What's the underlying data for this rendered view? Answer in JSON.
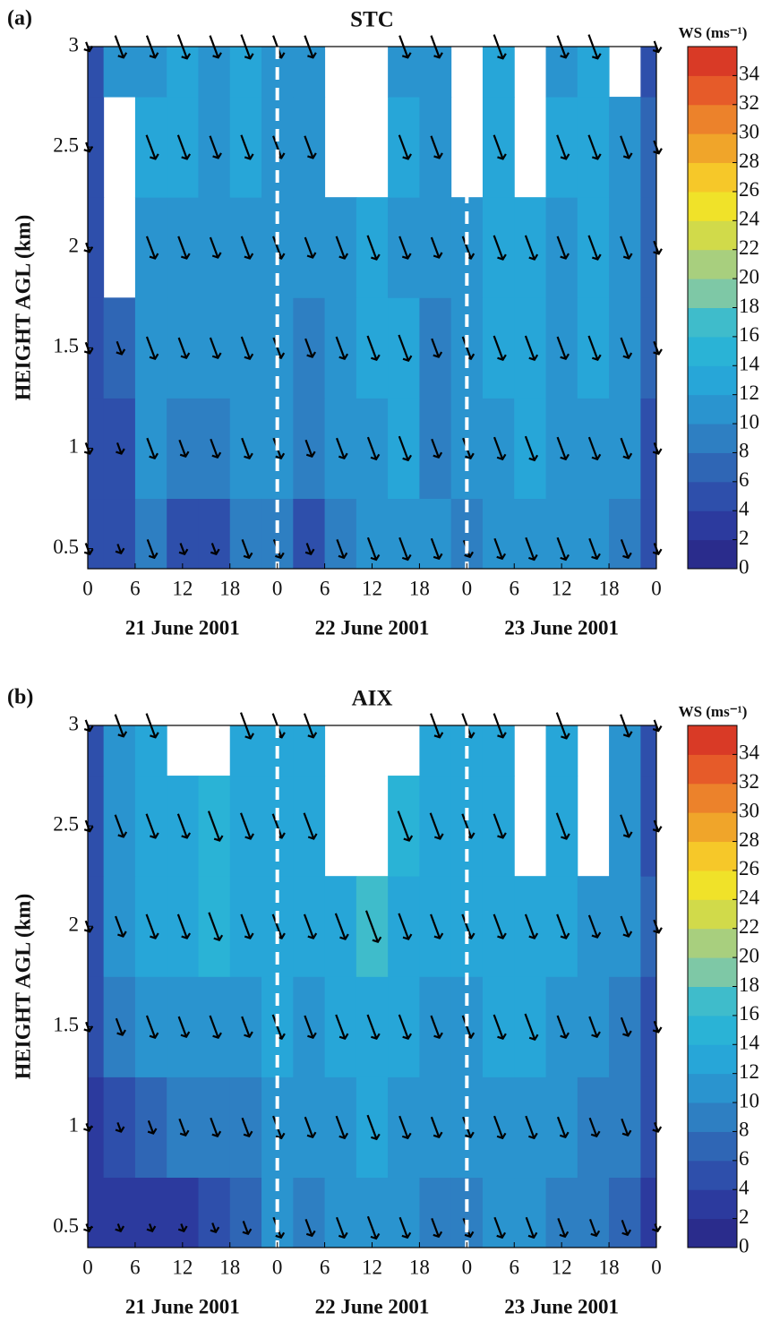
{
  "chart_data": [
    {
      "type": "contour",
      "panel_label": "(a)",
      "title": "STC",
      "y_label": "HEIGHT AGL (km)",
      "x": [
        0,
        4,
        8,
        12,
        16,
        20,
        24,
        28,
        32,
        36,
        40,
        44,
        48,
        52,
        56,
        60,
        64,
        68,
        72
      ],
      "heights": [
        0.5,
        1,
        1.5,
        2,
        2.5,
        3
      ],
      "z": [
        [
          5,
          4,
          9,
          5,
          5,
          9,
          9,
          5,
          9,
          11,
          11,
          10,
          8,
          10,
          11,
          11,
          10,
          9,
          5
        ],
        [
          5,
          5,
          10,
          8,
          9,
          10,
          10,
          8,
          10,
          11,
          12,
          9,
          10,
          11,
          12,
          11,
          11,
          10,
          5
        ],
        [
          5,
          6,
          11,
          10,
          10,
          11,
          10,
          9,
          11,
          12,
          13,
          9,
          11,
          12,
          12,
          11,
          12,
          10,
          6
        ],
        [
          4,
          null,
          11,
          11,
          10,
          11,
          11,
          10,
          11,
          12,
          11,
          10,
          11,
          12,
          12,
          11,
          12,
          11,
          6
        ],
        [
          4,
          null,
          12,
          12,
          11,
          12,
          11,
          11,
          null,
          null,
          12,
          11,
          null,
          12,
          null,
          12,
          12,
          11,
          6
        ],
        [
          4,
          11,
          11,
          12,
          11,
          12,
          11,
          11,
          null,
          null,
          11,
          11,
          null,
          12,
          null,
          11,
          12,
          null,
          5
        ]
      ],
      "xlim": [
        0,
        72
      ],
      "xticks": [
        0,
        6,
        12,
        18,
        {
          "value": 24,
          "label": "0"
        },
        {
          "value": 30,
          "label": "6"
        },
        {
          "value": 36,
          "label": "12"
        },
        {
          "value": 42,
          "label": "18"
        },
        {
          "value": 48,
          "label": "0"
        },
        {
          "value": 54,
          "label": "6"
        },
        {
          "value": 60,
          "label": "12"
        },
        {
          "value": 66,
          "label": "18"
        },
        {
          "value": 72,
          "label": "0"
        }
      ],
      "ylim": [
        0.4,
        3
      ],
      "yticks": [
        0.5,
        1,
        1.5,
        2,
        2.5,
        3
      ],
      "day_boundaries": [
        24,
        48
      ],
      "date_labels": [
        "21 June 2001",
        "22 June 2001",
        "23 June 2001"
      ],
      "colorbar": {
        "title": "WS (ms⁻¹)",
        "lim": [
          0,
          36
        ],
        "ticks": [
          0,
          2,
          4,
          6,
          8,
          10,
          12,
          14,
          16,
          18,
          20,
          22,
          24,
          26,
          28,
          30,
          32,
          34
        ],
        "colors": [
          "#2a2c8c",
          "#2c3a9e",
          "#2e4fab",
          "#2f66b5",
          "#2e7fc2",
          "#2a94cf",
          "#27a6d8",
          "#2ab3d6",
          "#3fbccb",
          "#7ec8a6",
          "#a8cf7e",
          "#d1da4a",
          "#f0e229",
          "#f6c829",
          "#f0a52a",
          "#ec822b",
          "#e65b29",
          "#d93a26"
        ]
      }
    },
    {
      "type": "contour",
      "panel_label": "(b)",
      "title": "AIX",
      "y_label": "HEIGHT AGL (km)",
      "x": [
        0,
        4,
        8,
        12,
        16,
        20,
        24,
        28,
        32,
        36,
        40,
        44,
        48,
        52,
        56,
        60,
        64,
        68,
        72
      ],
      "heights": [
        0.5,
        1,
        1.5,
        2,
        2.5,
        3
      ],
      "z": [
        [
          3,
          3,
          3,
          3,
          4,
          6,
          10,
          8,
          10,
          11,
          10,
          9,
          9,
          10,
          10,
          9,
          8,
          7,
          3
        ],
        [
          3,
          4,
          6,
          8,
          9,
          9,
          11,
          10,
          11,
          12,
          11,
          10,
          10,
          11,
          11,
          10,
          9,
          8,
          4
        ],
        [
          4,
          8,
          11,
          10,
          11,
          10,
          12,
          11,
          12,
          12,
          12,
          11,
          11,
          12,
          13,
          11,
          10,
          9,
          5
        ],
        [
          5,
          10,
          12,
          12,
          14,
          12,
          12,
          12,
          13,
          16,
          13,
          12,
          12,
          12,
          12,
          12,
          11,
          10,
          6
        ],
        [
          5,
          11,
          12,
          12,
          15,
          13,
          12,
          13,
          null,
          null,
          15,
          13,
          12,
          12,
          null,
          13,
          null,
          11,
          5
        ],
        [
          5,
          11,
          12,
          null,
          null,
          13,
          12,
          12,
          null,
          null,
          null,
          12,
          12,
          12,
          null,
          13,
          null,
          11,
          5
        ]
      ],
      "xlim": [
        0,
        72
      ],
      "xticks": [
        0,
        6,
        12,
        18,
        {
          "value": 24,
          "label": "0"
        },
        {
          "value": 30,
          "label": "6"
        },
        {
          "value": 36,
          "label": "12"
        },
        {
          "value": 42,
          "label": "18"
        },
        {
          "value": 48,
          "label": "0"
        },
        {
          "value": 54,
          "label": "6"
        },
        {
          "value": 60,
          "label": "12"
        },
        {
          "value": 66,
          "label": "18"
        },
        {
          "value": 72,
          "label": "0"
        }
      ],
      "ylim": [
        0.4,
        3
      ],
      "yticks": [
        0.5,
        1,
        1.5,
        2,
        2.5,
        3
      ],
      "day_boundaries": [
        24,
        48
      ],
      "date_labels": [
        "21 June 2001",
        "22 June 2001",
        "23 June 2001"
      ],
      "colorbar": {
        "title": "WS (ms⁻¹)",
        "lim": [
          0,
          36
        ],
        "ticks": [
          0,
          2,
          4,
          6,
          8,
          10,
          12,
          14,
          16,
          18,
          20,
          22,
          24,
          26,
          28,
          30,
          32,
          34
        ],
        "colors": [
          "#2a2c8c",
          "#2c3a9e",
          "#2e4fab",
          "#2f66b5",
          "#2e7fc2",
          "#2a94cf",
          "#27a6d8",
          "#2ab3d6",
          "#3fbccb",
          "#7ec8a6",
          "#a8cf7e",
          "#d1da4a",
          "#f0e229",
          "#f6c829",
          "#f0a52a",
          "#ec822b",
          "#e65b29",
          "#d93a26"
        ]
      }
    }
  ]
}
